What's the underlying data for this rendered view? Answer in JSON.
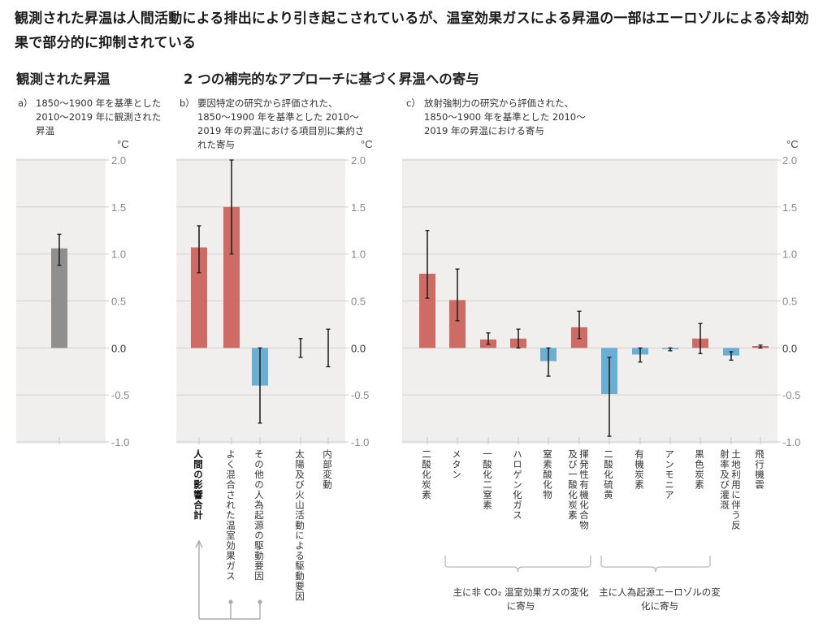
{
  "main_title": "観測された昇温は人間活動による排出により引き起こされているが、温室効果ガスによる昇温の一部はエーロゾルによる冷却効果で部分的に抑制されている",
  "section_titles": {
    "observed": "観測された昇温",
    "contributions": "2 つの補完的なアプローチに基づく昇温への寄与"
  },
  "panels": {
    "a": {
      "marker": "a）",
      "description": "1850〜1900 年を基準とした 2010〜2019 年に観測された昇温",
      "unit": "°C"
    },
    "b": {
      "marker": "b）",
      "description": "要因特定の研究から評価された、1850〜1900 年を基準とした 2010〜2019 年の昇温における項目別に集約された寄与",
      "unit": "°C"
    },
    "c": {
      "marker": "c）",
      "description": "放射強制力の研究から評価された、1850〜1900 年を基準とした 2010〜2019 年の昇温における寄与",
      "unit": "°C"
    }
  },
  "group_labels": {
    "non_co2": "主に非 CO₂ 温室効果ガスの変化に寄与",
    "aerosol": "主に人為起源エーロゾルの変化に寄与"
  },
  "colors": {
    "warming": "#cd6b64",
    "cooling": "#6aaed4",
    "observed": "#8f8f8f",
    "plot_bg": "#f1efed",
    "grid": "#d6d4d2"
  },
  "chart_data": [
    {
      "type": "bar",
      "title": "観測された昇温",
      "ylabel": "°C",
      "ylim": [
        -1.0,
        2.0
      ],
      "yticks": [
        "2.0",
        "1.5",
        "1.0",
        "0.5",
        "0.0",
        "-0.5",
        "-1.0"
      ],
      "grid": true,
      "categories": [
        ""
      ],
      "values": [
        1.06
      ],
      "error_low": [
        0.88
      ],
      "error_high": [
        1.21
      ],
      "bar_colors": [
        "observed"
      ]
    },
    {
      "type": "bar",
      "title": "要因特定の研究から評価された寄与",
      "ylabel": "°C",
      "ylim": [
        -1.0,
        2.0
      ],
      "yticks": [
        "2.0",
        "1.5",
        "1.0",
        "0.5",
        "0.0",
        "-0.5",
        "-1.0"
      ],
      "grid": true,
      "categories": [
        "人間の影響合計",
        "よく混合された温室効果ガス",
        "その他の人為起源の駆動要因",
        "太陽及び火山活動による駆動要因",
        "内部変動"
      ],
      "values": [
        1.07,
        1.5,
        -0.4,
        0.0,
        0.0
      ],
      "error_low": [
        0.8,
        1.0,
        -0.8,
        -0.1,
        -0.2
      ],
      "error_high": [
        1.3,
        2.0,
        0.0,
        0.1,
        0.2
      ],
      "bar_colors": [
        "warming",
        "warming",
        "cooling",
        "none",
        "none"
      ]
    },
    {
      "type": "bar",
      "title": "放射強制力の研究から評価された寄与",
      "ylabel": "°C",
      "ylim": [
        -1.0,
        2.0
      ],
      "yticks": [
        "2.0",
        "1.5",
        "1.0",
        "0.5",
        "0.0",
        "-0.5",
        "-1.0"
      ],
      "grid": true,
      "categories": [
        "二酸化炭素",
        "メタン",
        "一酸化二窒素",
        "ハロゲン化ガス",
        "窒素酸化物",
        "揮発性有機化合物及び一酸化炭素",
        "二酸化硫黄",
        "有機炭素",
        "アンモニア",
        "黒色炭素",
        "土地利用に伴う反射率及び灌漑",
        "飛行機雲"
      ],
      "values": [
        0.79,
        0.51,
        0.09,
        0.1,
        -0.14,
        0.22,
        -0.49,
        -0.07,
        -0.01,
        0.1,
        -0.08,
        0.02
      ],
      "error_low": [
        0.53,
        0.29,
        0.04,
        0.0,
        -0.3,
        0.1,
        -0.94,
        -0.15,
        -0.03,
        -0.06,
        -0.13,
        0.0
      ],
      "error_high": [
        1.25,
        0.84,
        0.16,
        0.2,
        0.0,
        0.39,
        -0.1,
        0.0,
        0.0,
        0.26,
        -0.04,
        0.03
      ],
      "bar_colors": [
        "warming",
        "warming",
        "warming",
        "warming",
        "cooling",
        "warming",
        "cooling",
        "cooling",
        "cooling",
        "warming",
        "cooling",
        "warming"
      ]
    }
  ]
}
